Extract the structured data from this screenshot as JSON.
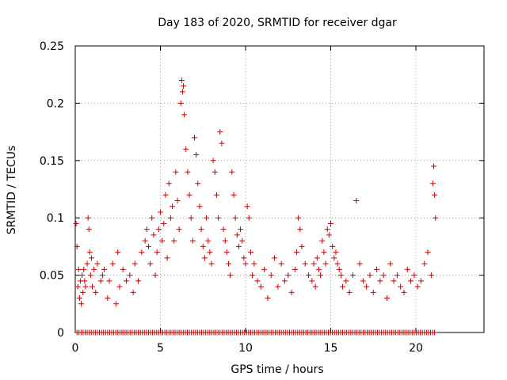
{
  "chart_data": {
    "type": "scatter",
    "title": "Day 183 of 2020, SRMTID for receiver dgar",
    "xlabel": "GPS time / hours",
    "ylabel": "SRMTID / TECUs",
    "xlim": [
      0,
      24
    ],
    "ylim": [
      0,
      0.25
    ],
    "xticks": [
      0,
      5,
      10,
      15,
      20
    ],
    "xtick_labels": [
      "0",
      "5",
      "10",
      "15",
      "20"
    ],
    "yticks": [
      0,
      0.05,
      0.1,
      0.15,
      0.2,
      0.25
    ],
    "ytick_labels": [
      "0",
      "0.05",
      "0.1",
      "0.15",
      "0.2",
      "0.25"
    ],
    "grid": true,
    "marker": "+",
    "series": [
      {
        "name": "SRMTID",
        "color": "#cc0000",
        "x": [
          0.05,
          0.1,
          0.15,
          0.2,
          0.25,
          0.3,
          0.35,
          0.4,
          0.45,
          0.5,
          0.55,
          0.6,
          0.7,
          0.75,
          0.8,
          0.85,
          0.9,
          0.95,
          1.0,
          1.1,
          1.2,
          1.3,
          1.5,
          1.6,
          1.7,
          1.9,
          2.0,
          2.2,
          2.4,
          2.5,
          2.6,
          2.8,
          3.0,
          3.2,
          3.4,
          3.5,
          3.7,
          3.9,
          4.1,
          4.2,
          4.3,
          4.4,
          4.5,
          4.6,
          4.7,
          4.8,
          4.9,
          5.0,
          5.1,
          5.2,
          5.3,
          5.4,
          5.5,
          5.6,
          5.7,
          5.8,
          5.9,
          6.0,
          6.1,
          6.2,
          6.25,
          6.3,
          6.35,
          6.4,
          6.5,
          6.6,
          6.7,
          6.8,
          6.9,
          7.0,
          7.1,
          7.2,
          7.3,
          7.4,
          7.5,
          7.6,
          7.7,
          7.8,
          7.9,
          8.0,
          8.1,
          8.2,
          8.3,
          8.4,
          8.5,
          8.6,
          8.7,
          8.8,
          8.9,
          9.0,
          9.1,
          9.2,
          9.3,
          9.4,
          9.5,
          9.6,
          9.7,
          9.8,
          9.9,
          10.0,
          10.1,
          10.2,
          10.3,
          10.4,
          10.5,
          10.7,
          10.9,
          11.1,
          11.3,
          11.5,
          11.7,
          11.9,
          12.1,
          12.3,
          12.5,
          12.7,
          12.9,
          13.0,
          13.1,
          13.2,
          13.3,
          13.5,
          13.7,
          13.9,
          14.0,
          14.1,
          14.2,
          14.3,
          14.4,
          14.5,
          14.6,
          14.7,
          14.8,
          14.9,
          15.0,
          15.1,
          15.2,
          15.3,
          15.4,
          15.5,
          15.6,
          15.7,
          15.9,
          16.1,
          16.3,
          16.5,
          16.7,
          16.9,
          17.1,
          17.3,
          17.5,
          17.7,
          17.9,
          18.1,
          18.3,
          18.5,
          18.7,
          18.9,
          19.1,
          19.3,
          19.5,
          19.7,
          19.9,
          20.1,
          20.3,
          20.5,
          20.7,
          20.9,
          21.0,
          21.05,
          21.1,
          21.15
        ],
        "y": [
          0.095,
          0.075,
          0.04,
          0.055,
          0.03,
          0.045,
          0.025,
          0.05,
          0.035,
          0.055,
          0.045,
          0.04,
          0.06,
          0.1,
          0.09,
          0.07,
          0.05,
          0.065,
          0.04,
          0.055,
          0.035,
          0.06,
          0.045,
          0.05,
          0.055,
          0.03,
          0.045,
          0.06,
          0.025,
          0.07,
          0.04,
          0.055,
          0.045,
          0.05,
          0.035,
          0.06,
          0.045,
          0.07,
          0.08,
          0.09,
          0.075,
          0.06,
          0.1,
          0.085,
          0.05,
          0.07,
          0.09,
          0.105,
          0.08,
          0.095,
          0.12,
          0.065,
          0.13,
          0.1,
          0.11,
          0.08,
          0.14,
          0.115,
          0.09,
          0.2,
          0.22,
          0.21,
          0.215,
          0.19,
          0.16,
          0.14,
          0.12,
          0.1,
          0.08,
          0.17,
          0.155,
          0.13,
          0.11,
          0.09,
          0.075,
          0.065,
          0.1,
          0.08,
          0.07,
          0.06,
          0.15,
          0.14,
          0.12,
          0.1,
          0.175,
          0.165,
          0.09,
          0.08,
          0.07,
          0.06,
          0.05,
          0.14,
          0.12,
          0.1,
          0.085,
          0.075,
          0.09,
          0.08,
          0.065,
          0.06,
          0.11,
          0.1,
          0.07,
          0.05,
          0.06,
          0.045,
          0.04,
          0.055,
          0.03,
          0.05,
          0.065,
          0.04,
          0.06,
          0.045,
          0.05,
          0.035,
          0.055,
          0.07,
          0.1,
          0.09,
          0.075,
          0.06,
          0.05,
          0.045,
          0.06,
          0.04,
          0.065,
          0.055,
          0.05,
          0.08,
          0.07,
          0.06,
          0.09,
          0.085,
          0.095,
          0.075,
          0.065,
          0.07,
          0.06,
          0.055,
          0.05,
          0.04,
          0.045,
          0.035,
          0.05,
          0.115,
          0.06,
          0.045,
          0.04,
          0.05,
          0.035,
          0.055,
          0.045,
          0.05,
          0.03,
          0.06,
          0.045,
          0.05,
          0.04,
          0.035,
          0.055,
          0.045,
          0.05,
          0.04,
          0.045,
          0.06,
          0.07,
          0.05,
          0.13,
          0.145,
          0.12,
          0.1
        ]
      }
    ],
    "zero_band_x_range": [
      0.1,
      21.1
    ]
  }
}
